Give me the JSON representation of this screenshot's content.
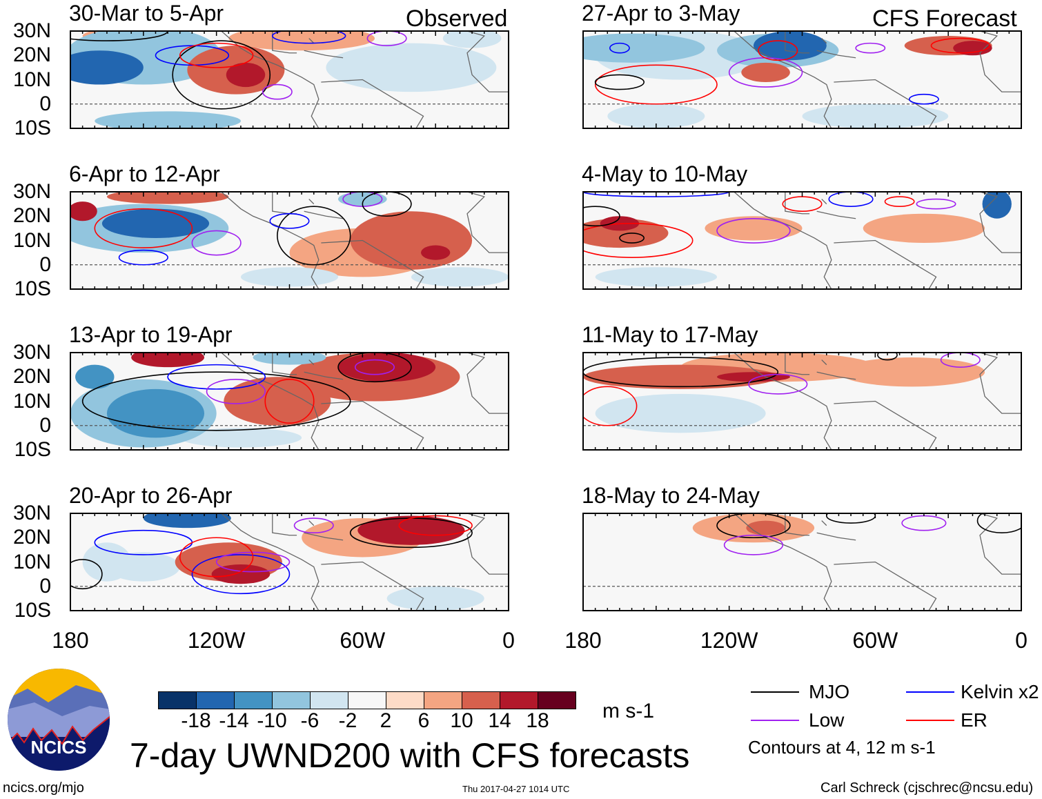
{
  "header": {
    "observed_label": "Observed",
    "forecast_label": "CFS Forecast"
  },
  "lat_labels": [
    "30N",
    "20N",
    "10N",
    "0",
    "10S"
  ],
  "lon_labels": [
    "180",
    "120W",
    "60W",
    "0"
  ],
  "panels": [
    {
      "title": "30-Mar to 5-Apr",
      "blobs": [
        [
          168,
          15,
          -16,
          18,
          7
        ],
        [
          150,
          20,
          -10,
          32,
          12
        ],
        [
          140,
          -7,
          -10,
          30,
          4
        ],
        [
          112,
          14,
          12,
          20,
          10
        ],
        [
          108,
          12,
          16,
          8,
          5
        ],
        [
          85,
          27,
          6,
          30,
          5
        ],
        [
          40,
          15,
          -6,
          35,
          10
        ],
        [
          15,
          27,
          -6,
          12,
          4
        ],
        [
          160,
          28,
          6,
          15,
          3
        ]
      ],
      "contours": [
        [
          "mjo",
          118,
          12,
          20,
          14
        ],
        [
          "mjo",
          165,
          30,
          25,
          4
        ],
        [
          "low",
          95,
          5,
          6,
          3
        ],
        [
          "blue",
          130,
          20,
          15,
          4
        ],
        [
          "red",
          120,
          20,
          15,
          5
        ],
        [
          "blue",
          82,
          28,
          15,
          3
        ],
        [
          "low",
          50,
          27,
          8,
          3
        ]
      ]
    },
    {
      "title": "6-Apr to 12-Apr",
      "blobs": [
        [
          145,
          17,
          -16,
          22,
          6
        ],
        [
          150,
          15,
          -10,
          35,
          10
        ],
        [
          175,
          22,
          14,
          6,
          4
        ],
        [
          40,
          10,
          10,
          25,
          12
        ],
        [
          30,
          5,
          16,
          6,
          3
        ],
        [
          60,
          5,
          6,
          30,
          10
        ],
        [
          140,
          28,
          10,
          25,
          3
        ],
        [
          90,
          -5,
          -6,
          20,
          4
        ],
        [
          20,
          -5,
          -6,
          20,
          4
        ],
        [
          60,
          27,
          -10,
          10,
          3
        ]
      ],
      "contours": [
        [
          "red",
          150,
          15,
          20,
          8
        ],
        [
          "blue",
          150,
          3,
          10,
          3
        ],
        [
          "low",
          120,
          9,
          10,
          5
        ],
        [
          "mjo",
          80,
          12,
          15,
          12
        ],
        [
          "low",
          60,
          27,
          8,
          3
        ],
        [
          "blue",
          90,
          18,
          8,
          3
        ],
        [
          "mjo",
          50,
          25,
          10,
          5
        ]
      ]
    },
    {
      "title": "13-Apr to 19-Apr",
      "blobs": [
        [
          145,
          5,
          -14,
          20,
          10
        ],
        [
          150,
          5,
          -10,
          30,
          14
        ],
        [
          140,
          28,
          16,
          15,
          4
        ],
        [
          170,
          20,
          -14,
          8,
          5
        ],
        [
          95,
          10,
          10,
          22,
          10
        ],
        [
          50,
          24,
          16,
          20,
          6
        ],
        [
          55,
          20,
          10,
          35,
          10
        ],
        [
          110,
          -5,
          -6,
          25,
          4
        ],
        [
          90,
          28,
          -10,
          15,
          3
        ]
      ],
      "contours": [
        [
          "mjo",
          120,
          10,
          55,
          12
        ],
        [
          "blue",
          120,
          20,
          20,
          5
        ],
        [
          "red",
          90,
          10,
          10,
          9
        ],
        [
          "low",
          112,
          14,
          12,
          5
        ],
        [
          "low",
          55,
          24,
          8,
          3
        ],
        [
          "mjo",
          55,
          24,
          15,
          6
        ]
      ]
    },
    {
      "title": "20-Apr to 26-Apr",
      "blobs": [
        [
          132,
          28,
          -16,
          18,
          4
        ],
        [
          115,
          10,
          10,
          22,
          8
        ],
        [
          110,
          5,
          14,
          12,
          4
        ],
        [
          40,
          23,
          16,
          22,
          6
        ],
        [
          60,
          20,
          8,
          25,
          8
        ],
        [
          165,
          10,
          -6,
          10,
          8
        ],
        [
          150,
          8,
          -6,
          15,
          6
        ],
        [
          30,
          -5,
          -6,
          20,
          5
        ]
      ],
      "contours": [
        [
          "blue",
          150,
          18,
          20,
          5
        ],
        [
          "blue",
          110,
          5,
          20,
          8
        ],
        [
          "low",
          105,
          10,
          15,
          4
        ],
        [
          "red",
          120,
          12,
          15,
          8
        ],
        [
          "mjo",
          40,
          22,
          25,
          6
        ],
        [
          "red",
          30,
          25,
          15,
          4
        ],
        [
          "low",
          80,
          25,
          8,
          3
        ],
        [
          "mjo",
          175,
          5,
          8,
          6
        ]
      ]
    },
    {
      "title": "27-Apr to 3-May",
      "blobs": [
        [
          160,
          23,
          -10,
          30,
          6
        ],
        [
          140,
          20,
          -6,
          35,
          10
        ],
        [
          95,
          24,
          -16,
          15,
          6
        ],
        [
          100,
          22,
          -10,
          25,
          7
        ],
        [
          105,
          13,
          12,
          10,
          4
        ],
        [
          30,
          24,
          12,
          18,
          4
        ],
        [
          20,
          23,
          14,
          8,
          3
        ],
        [
          60,
          -5,
          -6,
          30,
          5
        ],
        [
          150,
          -5,
          -6,
          20,
          5
        ]
      ],
      "contours": [
        [
          "red",
          150,
          8,
          25,
          8
        ],
        [
          "mjo",
          165,
          9,
          10,
          3
        ],
        [
          "low",
          105,
          13,
          15,
          6
        ],
        [
          "red",
          100,
          22,
          8,
          4
        ],
        [
          "blue",
          165,
          23,
          4,
          2
        ],
        [
          "red",
          25,
          24,
          12,
          3
        ],
        [
          "low",
          62,
          23,
          6,
          2
        ],
        [
          "blue",
          40,
          2,
          6,
          2
        ]
      ]
    },
    {
      "title": "4-May to 10-May",
      "blobs": [
        [
          165,
          13,
          10,
          20,
          6
        ],
        [
          165,
          17,
          14,
          8,
          3
        ],
        [
          110,
          15,
          6,
          20,
          5
        ],
        [
          40,
          15,
          6,
          25,
          6
        ],
        [
          10,
          25,
          -16,
          6,
          6
        ],
        [
          150,
          -5,
          -6,
          25,
          4
        ],
        [
          60,
          0,
          -2,
          40,
          10
        ]
      ],
      "contours": [
        [
          "red",
          160,
          10,
          25,
          7
        ],
        [
          "mjo",
          175,
          20,
          10,
          4
        ],
        [
          "mjo",
          160,
          11,
          5,
          2
        ],
        [
          "low",
          110,
          14,
          15,
          5
        ],
        [
          "red",
          90,
          25,
          8,
          3
        ],
        [
          "blue",
          70,
          27,
          9,
          3
        ],
        [
          "red",
          50,
          26,
          6,
          2
        ],
        [
          "low",
          35,
          25,
          8,
          2
        ],
        [
          "blue",
          150,
          30,
          30,
          2
        ]
      ]
    },
    {
      "title": "11-May to 17-May",
      "blobs": [
        [
          140,
          20,
          10,
          40,
          5
        ],
        [
          110,
          20,
          14,
          15,
          2
        ],
        [
          100,
          24,
          6,
          40,
          6
        ],
        [
          45,
          22,
          6,
          30,
          6
        ],
        [
          140,
          5,
          -6,
          35,
          8
        ],
        [
          120,
          0,
          -2,
          40,
          10
        ]
      ],
      "contours": [
        [
          "mjo",
          140,
          22,
          40,
          6
        ],
        [
          "red",
          170,
          8,
          12,
          8
        ],
        [
          "low",
          100,
          17,
          12,
          4
        ],
        [
          "low",
          25,
          27,
          8,
          3
        ],
        [
          "mjo",
          55,
          29,
          4,
          2
        ]
      ]
    },
    {
      "title": "18-May to 24-May",
      "blobs": [
        [
          110,
          24,
          6,
          25,
          6
        ],
        [
          105,
          24,
          10,
          8,
          3
        ],
        [
          150,
          8,
          -2,
          35,
          10
        ],
        [
          40,
          10,
          -2,
          30,
          12
        ]
      ],
      "contours": [
        [
          "mjo",
          110,
          25,
          15,
          5
        ],
        [
          "mjo",
          70,
          29,
          10,
          3
        ],
        [
          "low",
          110,
          17,
          12,
          4
        ],
        [
          "low",
          40,
          26,
          9,
          3
        ],
        [
          "mjo",
          8,
          27,
          10,
          5
        ]
      ]
    }
  ],
  "colorbar": {
    "colors": [
      "#083268",
      "#2266b0",
      "#4393c3",
      "#92c5de",
      "#d1e5f0",
      "#f7f7f7",
      "#fddbc7",
      "#f4a582",
      "#d6604d",
      "#b2182b",
      "#67001f"
    ],
    "labels": [
      "-18",
      "-14",
      "-10",
      "-6",
      "-2",
      "2",
      "6",
      "10",
      "14",
      "18"
    ],
    "units": "m s-1"
  },
  "legend": {
    "mjo": "MJO",
    "kelvin": "Kelvin x2",
    "low": "Low",
    "er": "ER",
    "contours_note": "Contours at 4, 12 m s-1",
    "colors": {
      "mjo": "#000000",
      "blue": "#0000ff",
      "low": "#a020f0",
      "red": "#ff0000"
    }
  },
  "logo_text": "NCICS",
  "title": "7-day UWND200 with CFS forecasts",
  "footer": {
    "url": "ncics.org/mjo",
    "timestamp": "Thu 2017-04-27 1014 UTC",
    "author": "Carl Schreck (cjschrec@ncsu.edu)"
  }
}
